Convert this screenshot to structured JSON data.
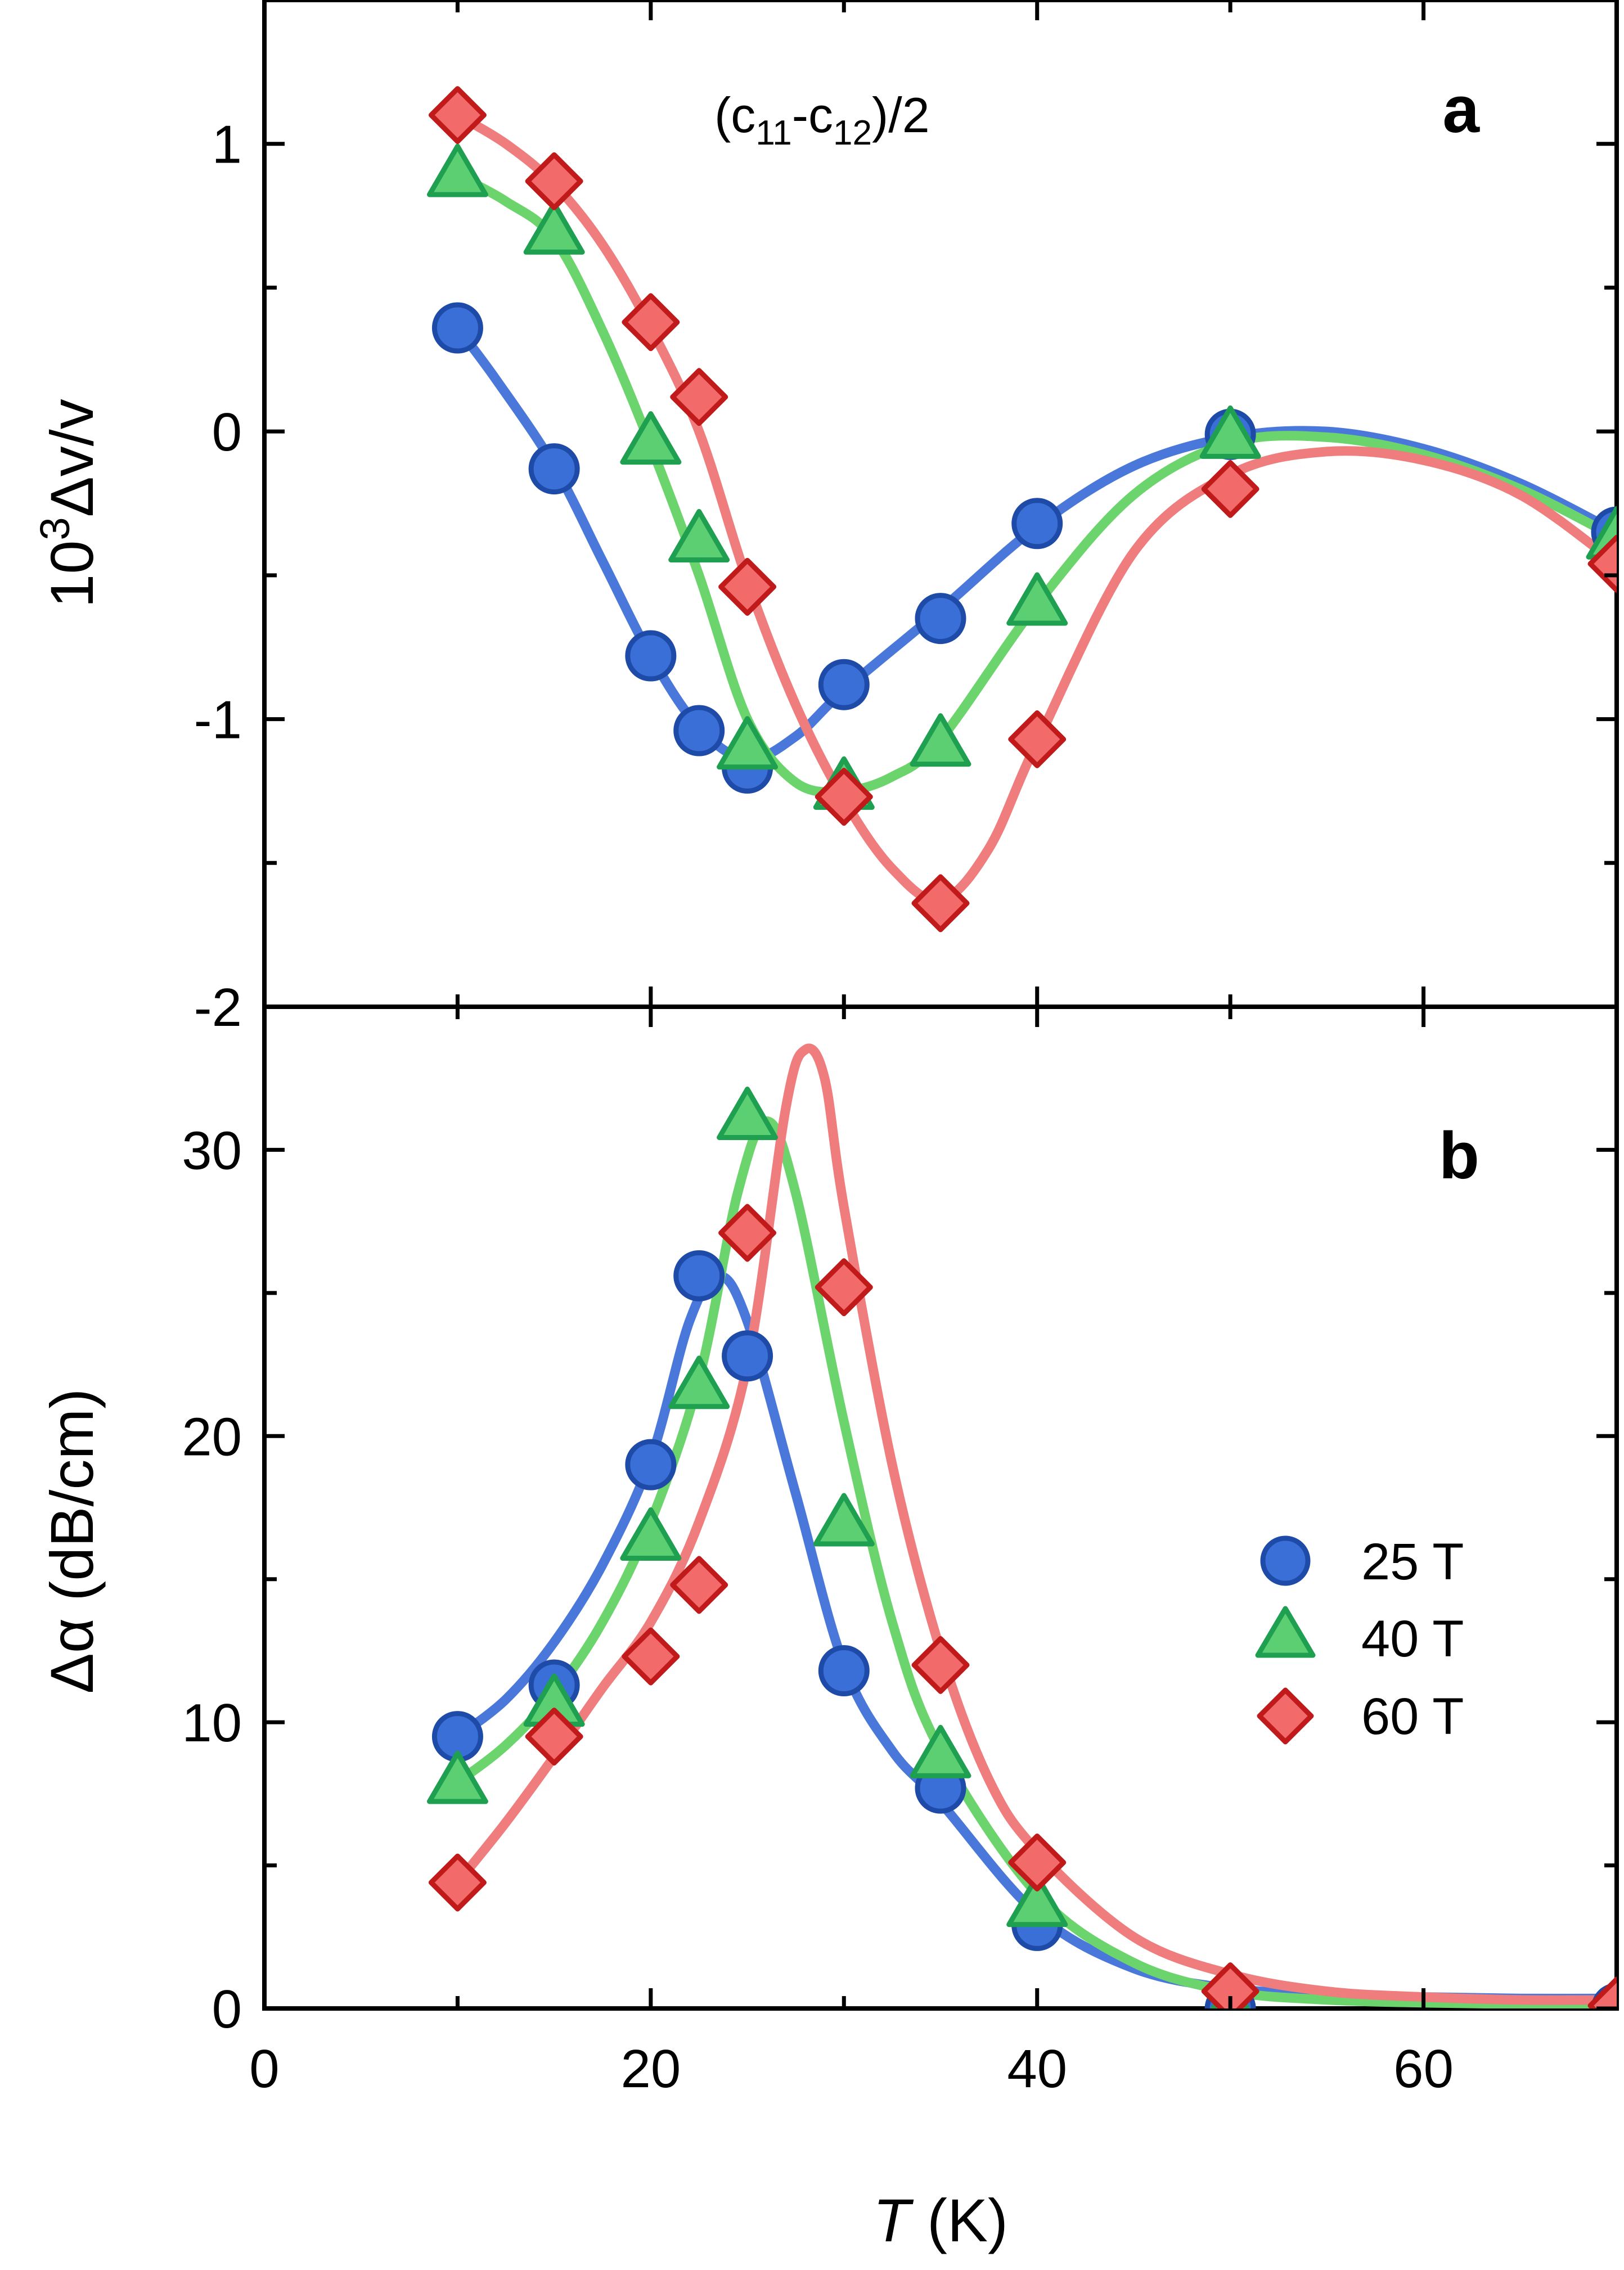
{
  "chart_data": [
    {
      "panel": "a",
      "type": "line",
      "panel_label": "a",
      "annotation": {
        "base": "(c",
        "sub1": "11",
        "mid": "-c",
        "sub2": "12",
        "tail": ")/2"
      },
      "ylabel": {
        "prefix": "10",
        "sup": "3",
        "rest": "Δv/v"
      },
      "ylim": [
        -2,
        1.5
      ],
      "yticks": [
        -2,
        -1,
        0,
        1
      ],
      "ytick_labels": [
        "-2",
        "-1",
        "0",
        "1"
      ],
      "xlim": [
        0,
        70
      ],
      "series": [
        {
          "name": "25 T",
          "marker": "circle",
          "color": "#3a6fd8",
          "line_color": "#4a78da",
          "points": [
            [
              10,
              0.36
            ],
            [
              15,
              -0.13
            ],
            [
              20,
              -0.78
            ],
            [
              22.5,
              -1.04
            ],
            [
              25,
              -1.17
            ],
            [
              30,
              -0.88
            ],
            [
              35,
              -0.65
            ],
            [
              40,
              -0.32
            ],
            [
              50,
              -0.01
            ],
            [
              70,
              -0.35
            ]
          ],
          "curve": [
            [
              10,
              0.36
            ],
            [
              12,
              0.18
            ],
            [
              15,
              -0.12
            ],
            [
              17.5,
              -0.45
            ],
            [
              20,
              -0.78
            ],
            [
              22.5,
              -1.03
            ],
            [
              25,
              -1.14
            ],
            [
              27.5,
              -1.06
            ],
            [
              30,
              -0.9
            ],
            [
              35,
              -0.62
            ],
            [
              40,
              -0.33
            ],
            [
              45,
              -0.12
            ],
            [
              50,
              -0.02
            ],
            [
              55,
              0.0
            ],
            [
              60,
              -0.06
            ],
            [
              65,
              -0.18
            ],
            [
              70,
              -0.35
            ]
          ]
        },
        {
          "name": "40 T",
          "marker": "triangle",
          "color": "#2bb35a",
          "line_color": "#6cd46c",
          "points": [
            [
              10,
              0.89
            ],
            [
              15,
              0.69
            ],
            [
              20,
              -0.04
            ],
            [
              22.5,
              -0.38
            ],
            [
              25,
              -1.1
            ],
            [
              30,
              -1.24
            ],
            [
              35,
              -1.09
            ],
            [
              40,
              -0.6
            ],
            [
              50,
              -0.02
            ],
            [
              70,
              -0.37
            ]
          ],
          "curve": [
            [
              10,
              0.89
            ],
            [
              12.5,
              0.8
            ],
            [
              15,
              0.67
            ],
            [
              17.5,
              0.35
            ],
            [
              20,
              -0.05
            ],
            [
              22.5,
              -0.5
            ],
            [
              25,
              -1.0
            ],
            [
              27.5,
              -1.22
            ],
            [
              30,
              -1.25
            ],
            [
              32.5,
              -1.2
            ],
            [
              35,
              -1.07
            ],
            [
              40,
              -0.6
            ],
            [
              45,
              -0.22
            ],
            [
              50,
              -0.04
            ],
            [
              55,
              -0.02
            ],
            [
              60,
              -0.08
            ],
            [
              65,
              -0.2
            ],
            [
              70,
              -0.37
            ]
          ]
        },
        {
          "name": "60 T",
          "marker": "diamond",
          "color": "#e0302a",
          "line_color": "#f07d7d",
          "points": [
            [
              10,
              1.1
            ],
            [
              15,
              0.87
            ],
            [
              20,
              0.38
            ],
            [
              22.5,
              0.12
            ],
            [
              25,
              -0.54
            ],
            [
              30,
              -1.27
            ],
            [
              35,
              -1.64
            ],
            [
              40,
              -1.07
            ],
            [
              50,
              -0.2
            ],
            [
              70,
              -0.46
            ]
          ],
          "curve": [
            [
              10,
              1.1
            ],
            [
              12.5,
              1.0
            ],
            [
              15,
              0.86
            ],
            [
              17.5,
              0.65
            ],
            [
              20,
              0.36
            ],
            [
              22.5,
              0.0
            ],
            [
              25,
              -0.52
            ],
            [
              27.5,
              -0.95
            ],
            [
              30,
              -1.28
            ],
            [
              32.5,
              -1.52
            ],
            [
              35,
              -1.63
            ],
            [
              37.5,
              -1.45
            ],
            [
              40,
              -1.08
            ],
            [
              45,
              -0.42
            ],
            [
              50,
              -0.15
            ],
            [
              55,
              -0.07
            ],
            [
              60,
              -0.1
            ],
            [
              65,
              -0.22
            ],
            [
              70,
              -0.46
            ]
          ]
        }
      ]
    },
    {
      "panel": "b",
      "type": "line",
      "panel_label": "b",
      "ylabel": "Δα (dB/cm)",
      "xlabel": {
        "italic": "T",
        "rest": " (K)"
      },
      "ylim": [
        0,
        35
      ],
      "yticks": [
        0,
        10,
        20,
        30
      ],
      "ytick_labels": [
        "0",
        "10",
        "20",
        "30"
      ],
      "xlim": [
        0,
        70
      ],
      "xticks": [
        0,
        20,
        40,
        60
      ],
      "xtick_labels": [
        "0",
        "20",
        "40",
        "60"
      ],
      "legend": {
        "placement": "center-right",
        "entries": [
          "25 T",
          "40 T",
          "60 T"
        ]
      },
      "series": [
        {
          "name": "25 T",
          "marker": "circle",
          "color": "#3a6fd8",
          "line_color": "#4a78da",
          "points": [
            [
              10,
              9.5
            ],
            [
              15,
              11.3
            ],
            [
              20,
              19.0
            ],
            [
              22.5,
              25.6
            ],
            [
              25,
              22.8
            ],
            [
              30,
              11.8
            ],
            [
              35,
              7.7
            ],
            [
              40,
              2.9
            ],
            [
              50,
              0.0
            ],
            [
              70,
              0.0
            ]
          ],
          "curve": [
            [
              10,
              9.5
            ],
            [
              12.5,
              10.8
            ],
            [
              15,
              12.8
            ],
            [
              17.5,
              15.5
            ],
            [
              20,
              19.2
            ],
            [
              22,
              24.0
            ],
            [
              23.5,
              25.6
            ],
            [
              25,
              24.0
            ],
            [
              27.5,
              18.0
            ],
            [
              30,
              12.0
            ],
            [
              32.5,
              9.0
            ],
            [
              35,
              7.2
            ],
            [
              40,
              3.3
            ],
            [
              45,
              1.4
            ],
            [
              50,
              0.7
            ],
            [
              55,
              0.5
            ],
            [
              60,
              0.4
            ],
            [
              65,
              0.35
            ],
            [
              70,
              0.35
            ]
          ]
        },
        {
          "name": "40 T",
          "marker": "triangle",
          "color": "#2bb35a",
          "line_color": "#6cd46c",
          "points": [
            [
              10,
              7.9
            ],
            [
              15,
              10.6
            ],
            [
              20,
              16.4
            ],
            [
              22.5,
              21.7
            ],
            [
              25,
              31.1
            ],
            [
              30,
              16.9
            ],
            [
              35,
              8.8
            ],
            [
              40,
              3.6
            ],
            [
              50,
              0.0
            ],
            [
              70,
              0.0
            ]
          ],
          "curve": [
            [
              10,
              7.9
            ],
            [
              12.5,
              9.2
            ],
            [
              15,
              11.0
            ],
            [
              17.5,
              13.5
            ],
            [
              20,
              17.0
            ],
            [
              22.5,
              22.0
            ],
            [
              24.5,
              28.5
            ],
            [
              26,
              31.0
            ],
            [
              27.5,
              28.5
            ],
            [
              30,
              20.5
            ],
            [
              32.5,
              13.5
            ],
            [
              35,
              9.0
            ],
            [
              40,
              4.0
            ],
            [
              45,
              1.6
            ],
            [
              50,
              0.6
            ],
            [
              55,
              0.3
            ],
            [
              60,
              0.2
            ],
            [
              65,
              0.15
            ],
            [
              70,
              0.15
            ]
          ]
        },
        {
          "name": "60 T",
          "marker": "diamond",
          "color": "#e0302a",
          "line_color": "#f07d7d",
          "points": [
            [
              10,
              4.4
            ],
            [
              15,
              9.5
            ],
            [
              20,
              12.3
            ],
            [
              22.5,
              14.8
            ],
            [
              25,
              27.1
            ],
            [
              30,
              25.2
            ],
            [
              35,
              12.0
            ],
            [
              40,
              5.1
            ],
            [
              50,
              0.6
            ],
            [
              70,
              0.1
            ]
          ],
          "curve": [
            [
              10,
              4.4
            ],
            [
              12.5,
              6.5
            ],
            [
              15,
              8.8
            ],
            [
              17.5,
              11.2
            ],
            [
              20,
              13.5
            ],
            [
              22.5,
              17.0
            ],
            [
              25,
              22.5
            ],
            [
              27,
              31.5
            ],
            [
              28,
              33.5
            ],
            [
              29,
              32.5
            ],
            [
              30,
              28.0
            ],
            [
              32.5,
              19.0
            ],
            [
              35,
              12.5
            ],
            [
              37.5,
              8.0
            ],
            [
              40,
              5.5
            ],
            [
              45,
              2.5
            ],
            [
              50,
              1.2
            ],
            [
              55,
              0.6
            ],
            [
              60,
              0.4
            ],
            [
              65,
              0.3
            ],
            [
              70,
              0.3
            ]
          ]
        }
      ]
    }
  ]
}
